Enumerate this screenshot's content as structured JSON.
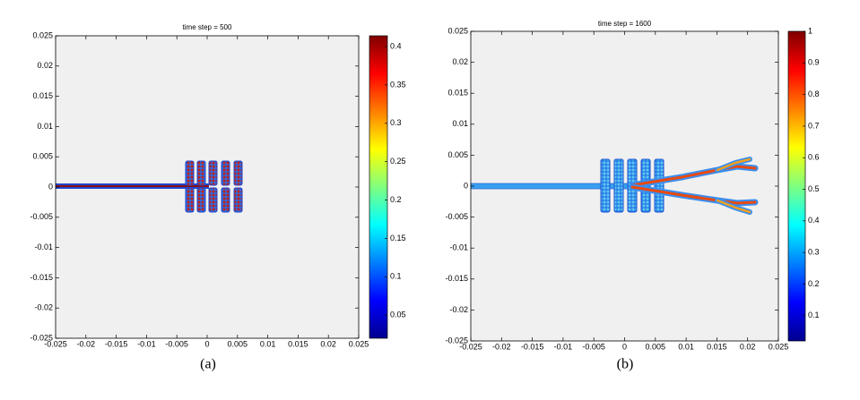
{
  "chart_data": [
    {
      "type": "scatter",
      "title": "time step = 500",
      "xlim": [
        -0.025,
        0.025
      ],
      "xticks": [
        -0.025,
        -0.02,
        -0.015,
        -0.01,
        -0.005,
        0,
        0.005,
        0.01,
        0.015,
        0.02,
        0.025
      ],
      "ylim": [
        -0.025,
        0.025
      ],
      "yticks": [
        -0.025,
        -0.02,
        -0.015,
        -0.01,
        -0.005,
        0,
        0.005,
        0.01,
        0.015,
        0.02,
        0.025
      ],
      "colorbar": {
        "lim": [
          0.02,
          0.414
        ],
        "ticks": [
          0.05,
          0.1,
          0.15,
          0.2,
          0.25,
          0.3,
          0.35,
          0.4
        ]
      },
      "caption": "(a)"
    },
    {
      "type": "scatter",
      "title": "time step = 1600",
      "xlim": [
        -0.025,
        0.025
      ],
      "xticks": [
        -0.025,
        -0.02,
        -0.015,
        -0.01,
        -0.005,
        0,
        0.005,
        0.01,
        0.015,
        0.02,
        0.025
      ],
      "ylim": [
        -0.025,
        0.025
      ],
      "yticks": [
        -0.025,
        -0.02,
        -0.015,
        -0.01,
        -0.005,
        0,
        0.005,
        0.01,
        0.015,
        0.02,
        0.025
      ],
      "colorbar": {
        "lim": [
          0.02,
          1
        ],
        "ticks": [
          0.1,
          0.2,
          0.3,
          0.4,
          0.5,
          0.6,
          0.7,
          0.8,
          0.9,
          1
        ]
      },
      "caption": "(b)"
    }
  ]
}
